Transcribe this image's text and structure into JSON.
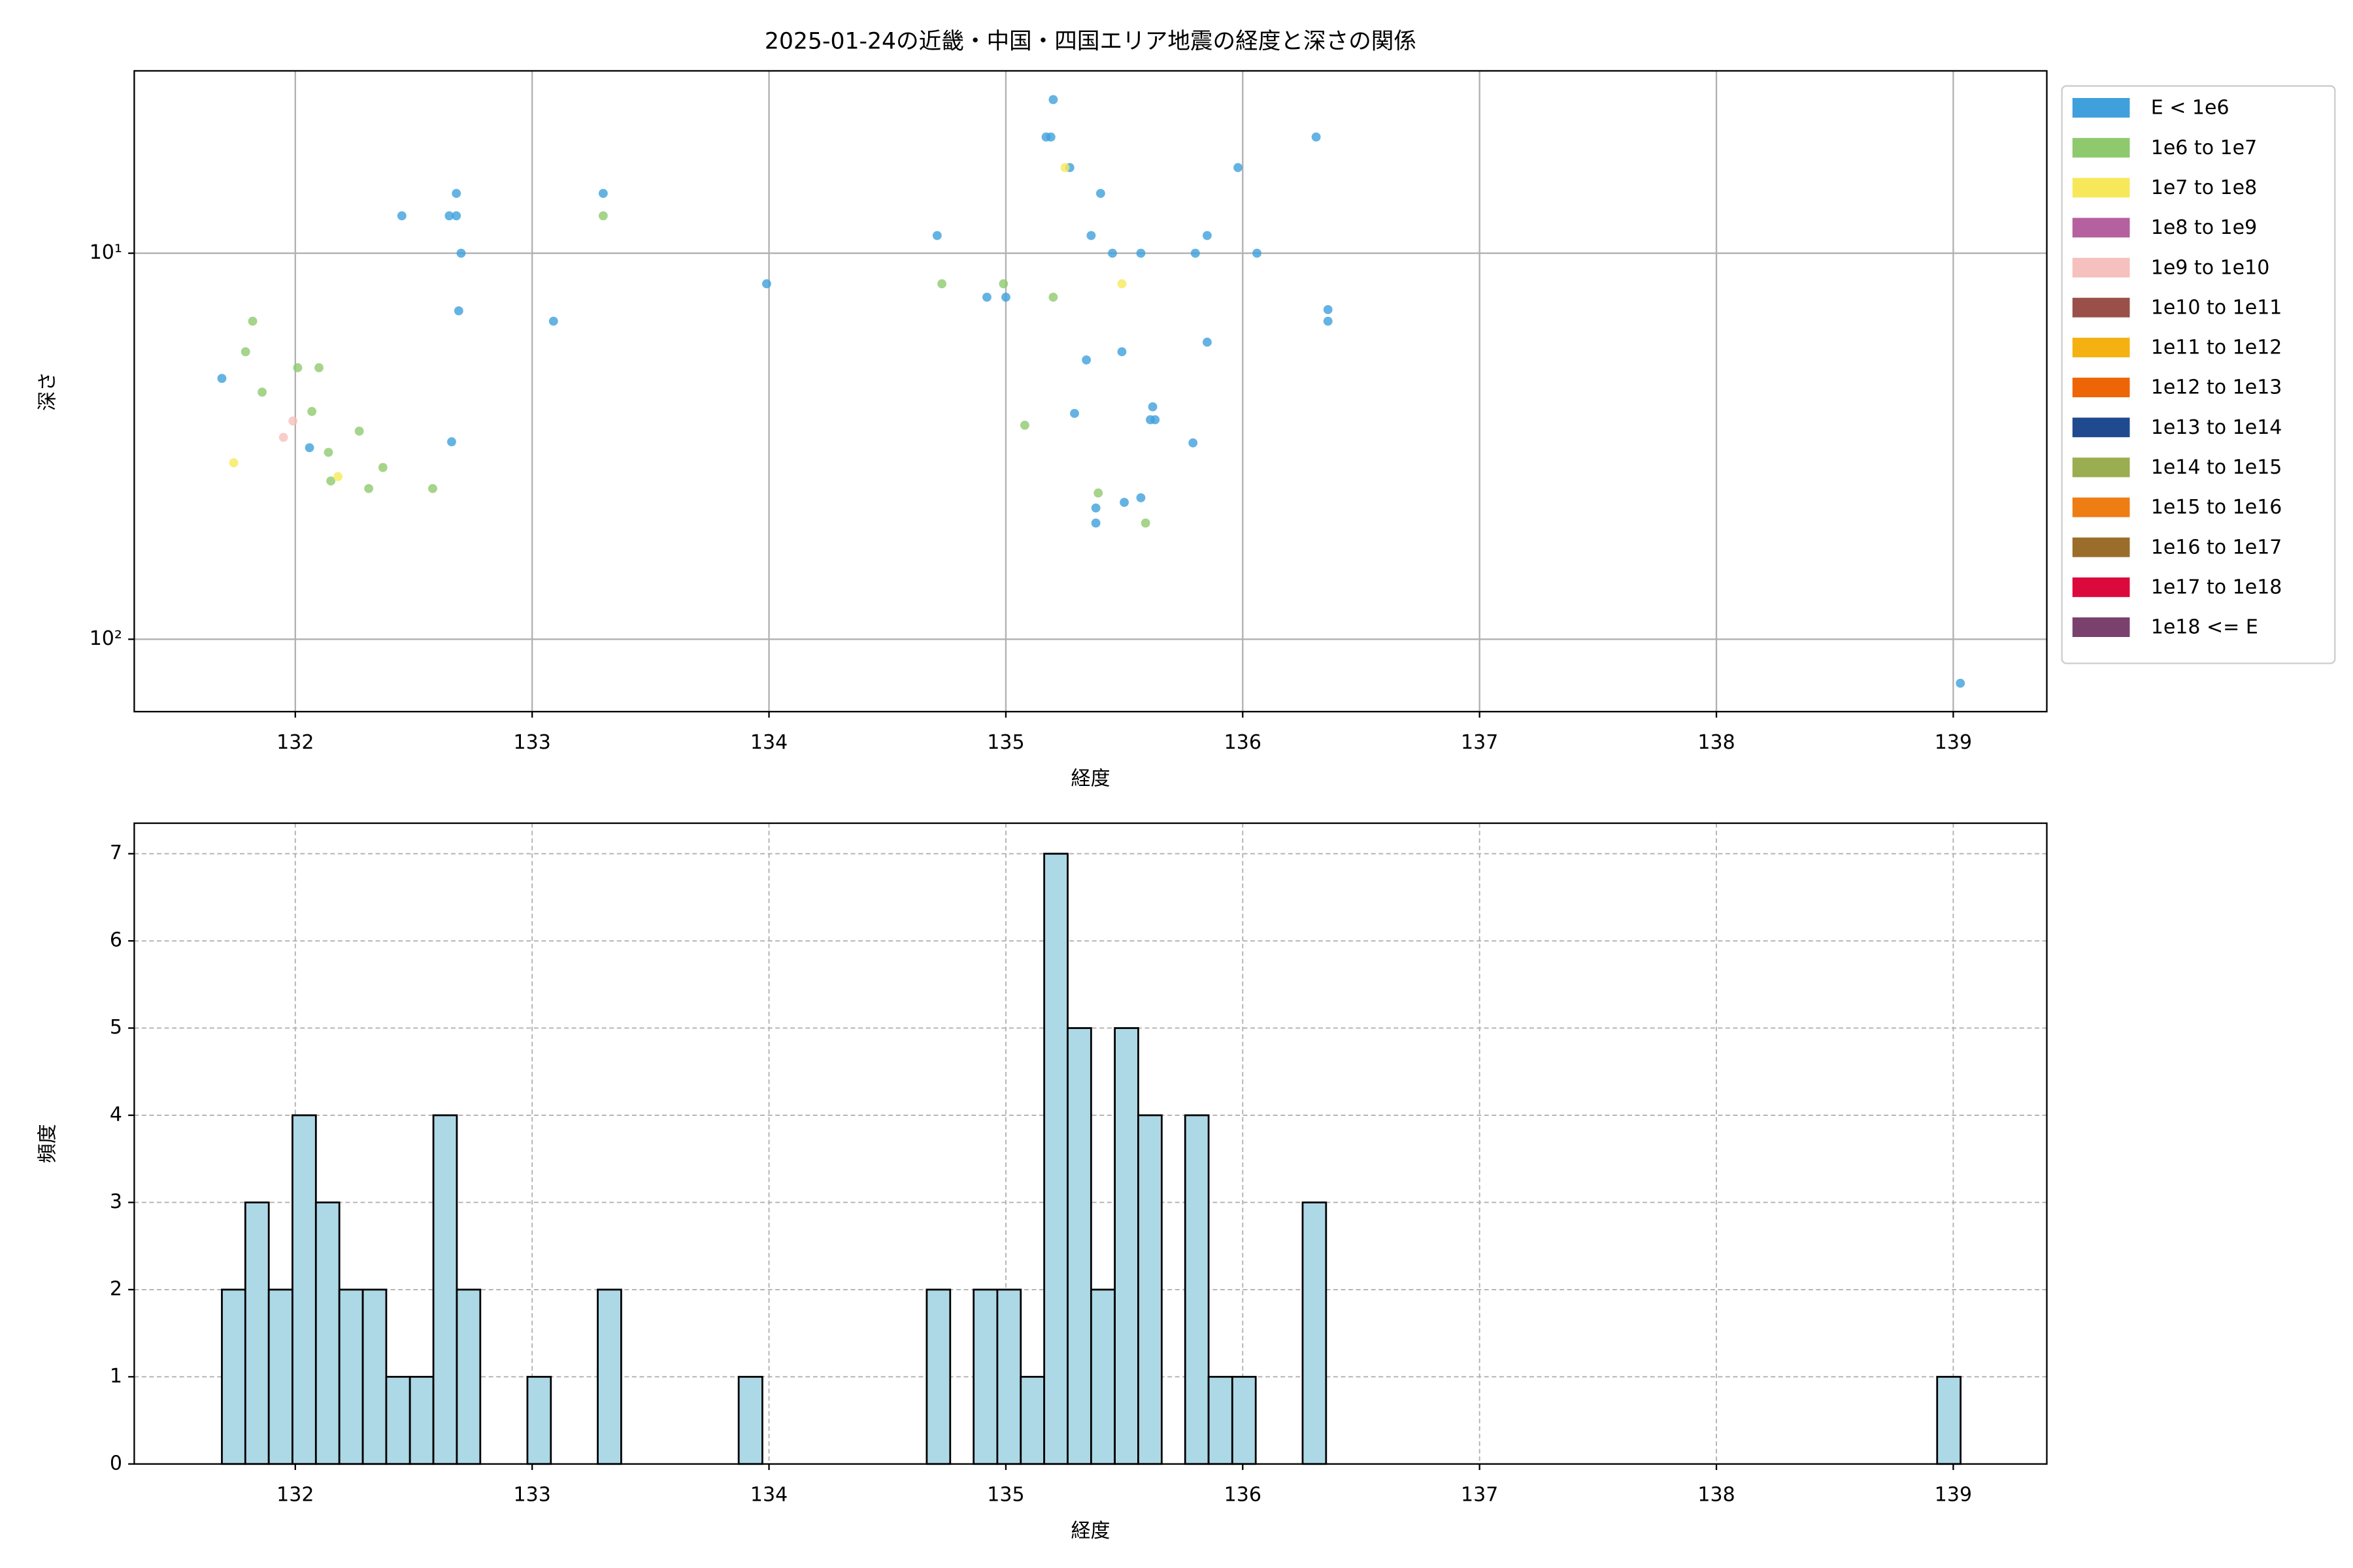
{
  "chart_data": [
    {
      "type": "scatter",
      "title": "2025-01-24の近畿・中国・四国エリア地震の経度と深さの関係",
      "xlabel": "経度",
      "ylabel": "深さ",
      "yscale": "log",
      "grid": true,
      "legend": "outside-right",
      "xlim": [
        131.32,
        139.395
      ],
      "xticks": [
        132,
        133,
        134,
        135,
        136,
        137,
        138,
        139
      ],
      "ylim": [
        154,
        3.37
      ],
      "yticks": [
        {
          "value": 10,
          "label": "10¹"
        },
        {
          "value": 100,
          "label": "10²"
        }
      ],
      "series": [
        {
          "name": "E < 1e6",
          "color": "#3fa0dc",
          "x": [
            131.69,
            132.45,
            132.68,
            132.65,
            132.68,
            132.7,
            132.69,
            132.06,
            132.66,
            133.09,
            133.3,
            133.99,
            134.71,
            134.92,
            135.0,
            135.2,
            135.17,
            135.19,
            135.27,
            135.4,
            135.36,
            135.45,
            135.57,
            135.8,
            135.85,
            135.98,
            136.06,
            136.31,
            136.36,
            136.36,
            135.34,
            135.49,
            135.85,
            135.62,
            135.61,
            135.63,
            135.29,
            135.79,
            135.38,
            135.38,
            135.5,
            135.57,
            139.03
          ],
          "values": [
            21.1,
            8.0,
            7.0,
            8.0,
            8.0,
            10,
            14.1,
            31.9,
            30.8,
            15.0,
            7.0,
            12.0,
            9.0,
            13.0,
            13.0,
            4.0,
            5.0,
            5.0,
            6.0,
            7.0,
            9.0,
            10,
            10,
            10,
            9.0,
            6.0,
            10,
            5.0,
            14.0,
            15.0,
            18.9,
            18.0,
            17.0,
            25.0,
            27.0,
            27.0,
            26.0,
            31.0,
            45.7,
            50.0,
            44.2,
            43.0,
            130
          ]
        },
        {
          "name": "1e6 to 1e7",
          "color": "#8fc96e",
          "x": [
            131.82,
            131.79,
            131.86,
            132.01,
            132.1,
            132.07,
            132.27,
            132.14,
            132.37,
            132.15,
            132.31,
            132.58,
            133.3,
            134.73,
            134.99,
            135.2,
            135.08,
            135.39,
            135.59
          ],
          "values": [
            15.0,
            18.0,
            22.9,
            19.8,
            19.8,
            25.7,
            28.9,
            32.8,
            35.9,
            38.9,
            40.7,
            40.7,
            8.0,
            12.0,
            12.0,
            13.0,
            27.9,
            41.8,
            50.0
          ]
        },
        {
          "name": "1e7 to 1e8",
          "color": "#f7e85a",
          "x": [
            131.74,
            132.18,
            135.25,
            135.49
          ],
          "values": [
            34.9,
            37.9,
            6.0,
            12.0
          ]
        },
        {
          "name": "1e8 to 1e9",
          "color": "#b5609f",
          "x": [],
          "values": []
        },
        {
          "name": "1e9 to 1e10",
          "color": "#f5c0bd",
          "x": [
            131.99,
            131.95
          ],
          "values": [
            27.2,
            30.0
          ]
        },
        {
          "name": "1e10 to 1e11",
          "color": "#9a5048",
          "x": [],
          "values": []
        },
        {
          "name": "1e11 to 1e12",
          "color": "#f5b112",
          "x": [],
          "values": []
        },
        {
          "name": "1e12 to 1e13",
          "color": "#ee6508",
          "x": [],
          "values": []
        },
        {
          "name": "1e13 to 1e14",
          "color": "#1f4a8f",
          "x": [],
          "values": []
        },
        {
          "name": "1e14 to 1e15",
          "color": "#9aad50",
          "x": [],
          "values": []
        },
        {
          "name": "1e15 to 1e16",
          "color": "#ee7d14",
          "x": [],
          "values": []
        },
        {
          "name": "1e16 to 1e17",
          "color": "#9a6e2a",
          "x": [],
          "values": []
        },
        {
          "name": "1e17 to 1e18",
          "color": "#dc0a3c",
          "x": [],
          "values": []
        },
        {
          "name": "1e18 <= E",
          "color": "#7a416e",
          "x": [],
          "values": []
        }
      ]
    },
    {
      "type": "histogram",
      "xlabel": "経度",
      "ylabel": "頻度",
      "grid": true,
      "color": "#add8e6",
      "edgecolor": "#000000",
      "xlim": [
        131.32,
        139.395
      ],
      "xticks": [
        132,
        133,
        134,
        135,
        136,
        137,
        138,
        139
      ],
      "ylim": [
        0,
        7.35
      ],
      "yticks": [
        0,
        1,
        2,
        3,
        4,
        5,
        6,
        7
      ],
      "bins": [
        131.69,
        131.789,
        131.888,
        131.988,
        132.087,
        132.186,
        132.285,
        132.384,
        132.484,
        132.583,
        132.682,
        132.781,
        132.88,
        132.98,
        133.079,
        133.178,
        133.277,
        133.376,
        133.476,
        133.575,
        133.674,
        133.773,
        133.872,
        133.972,
        134.071,
        134.17,
        134.269,
        134.368,
        134.468,
        134.567,
        134.666,
        134.765,
        134.864,
        134.964,
        135.063,
        135.162,
        135.261,
        135.36,
        135.46,
        135.559,
        135.658,
        135.757,
        135.856,
        135.956,
        136.055,
        136.154,
        136.253,
        136.352,
        136.452,
        136.551,
        136.65,
        136.749,
        136.848,
        136.948,
        137.047,
        137.146,
        137.245,
        137.344,
        137.444,
        137.543,
        137.642,
        137.741,
        137.84,
        137.94,
        138.039,
        138.138,
        138.237,
        138.336,
        138.436,
        138.535,
        138.634,
        138.733,
        138.832,
        138.932,
        139.031
      ],
      "values": [
        2,
        3,
        2,
        4,
        3,
        2,
        2,
        1,
        1,
        4,
        2,
        0,
        0,
        1,
        0,
        0,
        2,
        0,
        0,
        0,
        0,
        0,
        1,
        0,
        0,
        0,
        0,
        0,
        0,
        0,
        2,
        0,
        2,
        2,
        1,
        7,
        5,
        2,
        5,
        4,
        0,
        4,
        1,
        1,
        0,
        0,
        3,
        0,
        0,
        0,
        0,
        0,
        0,
        0,
        0,
        0,
        0,
        0,
        0,
        0,
        0,
        0,
        0,
        0,
        0,
        0,
        0,
        0,
        0,
        0,
        0,
        0,
        0,
        1
      ]
    }
  ]
}
